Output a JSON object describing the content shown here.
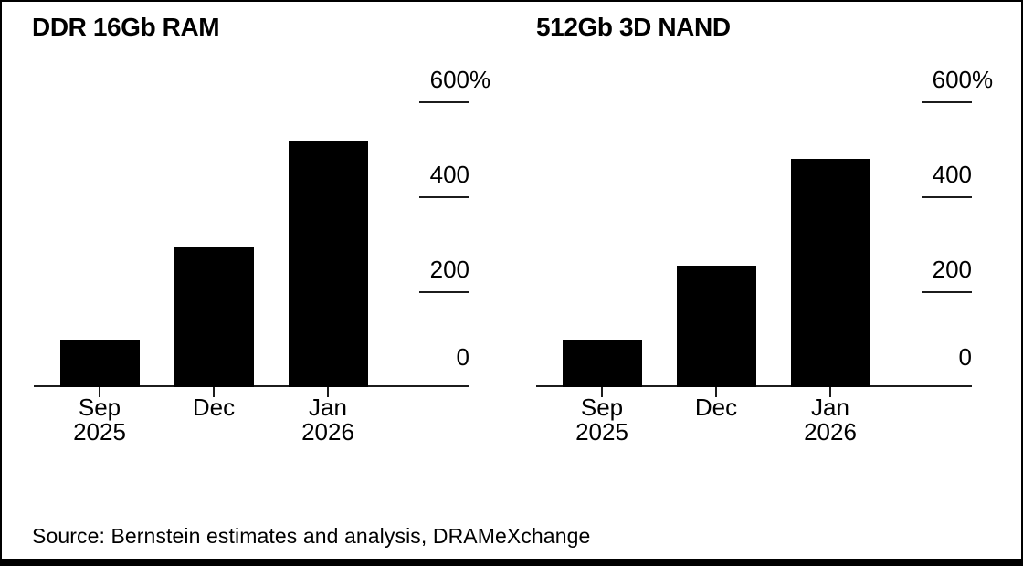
{
  "source": "Source: Bernstein estimates and analysis, DRAMeXchange",
  "colors": {
    "bar": "#000000",
    "axis": "#1c1c1c",
    "background": "#ffffff",
    "text": "#000000"
  },
  "y_axis": {
    "max": 600,
    "min": 0,
    "step": 200,
    "ticks": [
      {
        "value": 600,
        "label": "600",
        "suffix": "%"
      },
      {
        "value": 400,
        "label": "400",
        "suffix": ""
      },
      {
        "value": 200,
        "label": "200",
        "suffix": ""
      },
      {
        "value": 0,
        "label": "0",
        "suffix": ""
      }
    ]
  },
  "chart_data": [
    {
      "type": "bar",
      "title": "DDR 16Gb RAM",
      "categories": [
        "Sep 2025",
        "Dec",
        "Jan 2026"
      ],
      "category_lines": [
        [
          "Sep",
          "2025"
        ],
        [
          "Dec"
        ],
        [
          "Jan",
          "2026"
        ]
      ],
      "values": [
        100,
        295,
        520
      ],
      "unit": "%",
      "ylim": [
        0,
        600
      ],
      "yticks": [
        0,
        200,
        400,
        600
      ],
      "grid": false,
      "legend": "none",
      "axis_side": "right",
      "bar_color": "#000000"
    },
    {
      "type": "bar",
      "title": "512Gb 3D NAND",
      "categories": [
        "Sep 2025",
        "Dec",
        "Jan 2026"
      ],
      "category_lines": [
        [
          "Sep",
          "2025"
        ],
        [
          "Dec"
        ],
        [
          "Jan",
          "2026"
        ]
      ],
      "values": [
        100,
        255,
        480
      ],
      "unit": "%",
      "ylim": [
        0,
        600
      ],
      "yticks": [
        0,
        200,
        400,
        600
      ],
      "grid": false,
      "legend": "none",
      "axis_side": "right",
      "bar_color": "#000000"
    }
  ]
}
